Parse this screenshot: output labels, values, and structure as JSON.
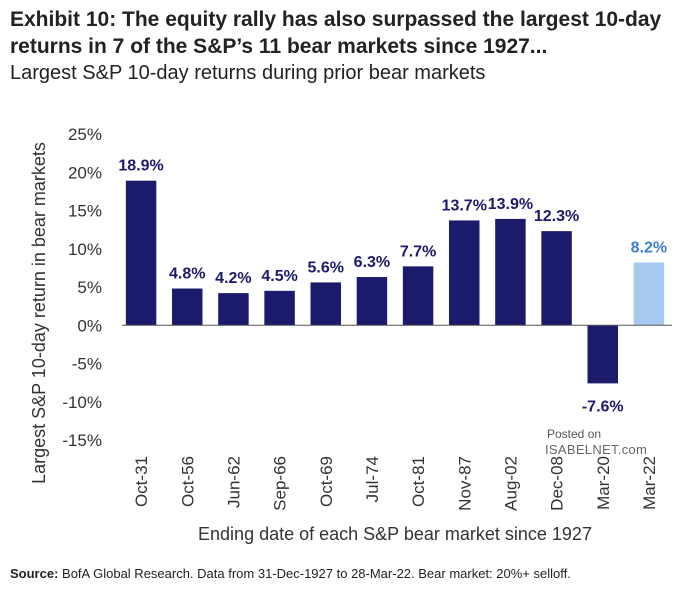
{
  "header": {
    "title": "Exhibit 10: The equity rally has also surpassed the largest 10-day returns in 7 of the S&P’s 11 bear markets since 1927...",
    "subtitle": "Largest S&P 10-day returns during prior bear markets"
  },
  "footer": {
    "source_label": "Source:",
    "source_text": "BofA Global Research. Data from 31-Dec-1927  to 28-Mar-22. Bear market: 20%+ selloff."
  },
  "watermark": {
    "line1": "Posted on",
    "line2": "ISABELNET.com"
  },
  "colors": {
    "primary_bar": "#1b1a6b",
    "highlight_bar": "#a7c9ef",
    "label_primary": "#1b1a6b",
    "label_highlight": "#3f7fd0"
  },
  "chart_data": {
    "type": "bar",
    "xlabel": "Ending date of each S&P bear market since 1927",
    "ylabel": "Largest S&P 10-day return in bear markets",
    "ylim": [
      -15,
      25
    ],
    "yticks": [
      25,
      20,
      15,
      10,
      5,
      0,
      -5,
      -10,
      -15
    ],
    "ytick_labels": [
      "25%",
      "20%",
      "15%",
      "10%",
      "5%",
      "0%",
      "-5%",
      "-10%",
      "-15%"
    ],
    "grid": false,
    "categories": [
      "Oct-31",
      "Oct-56",
      "Jun-62",
      "Sep-66",
      "Oct-69",
      "Jul-74",
      "Oct-81",
      "Nov-87",
      "Aug-02",
      "Dec-08",
      "Mar-20",
      "Mar-22"
    ],
    "values": [
      18.9,
      4.8,
      4.2,
      4.5,
      5.6,
      6.3,
      7.7,
      13.7,
      13.9,
      12.3,
      -7.6,
      8.2
    ],
    "data_labels": [
      "18.9%",
      "4.8%",
      "4.2%",
      "4.5%",
      "5.6%",
      "6.3%",
      "7.7%",
      "13.7%",
      "13.9%",
      "12.3%",
      "-7.6%",
      "8.2%"
    ],
    "highlight": [
      "Mar-22"
    ]
  }
}
